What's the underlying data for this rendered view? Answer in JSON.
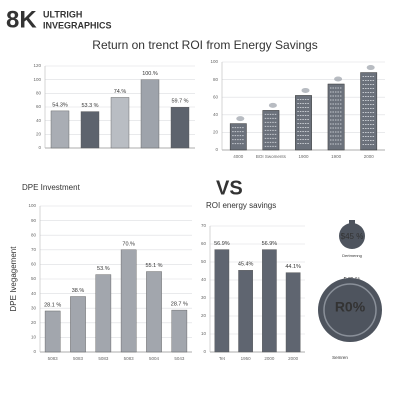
{
  "header": {
    "logo": "8K",
    "brand_line1": "ULTRIGH",
    "brand_line2": "INVEGRAPHICS"
  },
  "title": "Return on trenct ROI from Energy Savings",
  "vs": "VS",
  "chart_data": [
    {
      "type": "bar",
      "categories": [
        null,
        null,
        null,
        null,
        null
      ],
      "values": [
        54.3,
        53.3,
        74,
        100,
        59.7
      ],
      "value_labels": [
        "54.3%",
        "53.3 %",
        "74.%",
        "100.%",
        "59.7 %"
      ],
      "colors": [
        "#a9adb4",
        "#5d636d",
        "#b9bdc3",
        "#9ea3ab",
        "#5d636d"
      ],
      "ylim": [
        0,
        120
      ],
      "yticks": [
        0,
        20,
        40,
        60,
        80,
        100,
        120
      ],
      "grid": true
    },
    {
      "type": "building",
      "categories": [
        "4000",
        "BOI Swoments",
        "1900",
        "1900",
        "2000"
      ],
      "values": [
        30,
        45,
        62,
        75,
        88
      ],
      "color": "#6b717b",
      "ylim": [
        0,
        100
      ],
      "yticks": [
        0,
        20,
        40,
        60,
        80,
        100
      ],
      "grid": true
    },
    {
      "type": "bar",
      "title": "DPE Investment",
      "ylabel": "DPE Ivegagement",
      "categories": [
        "5083",
        "5083",
        "5083",
        "5083",
        "5004",
        "5043"
      ],
      "values": [
        28.1,
        38,
        53,
        70,
        55.1,
        28.7
      ],
      "value_labels": [
        "28.1 %",
        "38.%",
        "53.%",
        "70.%",
        "55.1 %",
        "28.7 %"
      ],
      "color": "#a2a6ad",
      "ylim": [
        0,
        100
      ],
      "yticks": [
        0,
        10,
        20,
        30,
        40,
        50,
        60,
        70,
        80,
        90,
        100
      ],
      "grid": true
    },
    {
      "type": "bar",
      "title": "ROI energy savings",
      "categories": [
        "Tet",
        "1950",
        "2000",
        "2000"
      ],
      "values": [
        56.9,
        45.4,
        56.9,
        44.1
      ],
      "value_labels": [
        "56.9%",
        "45.4%",
        "56.9%",
        "44.1%"
      ],
      "color": "#5f6570",
      "ylim": [
        0,
        70
      ],
      "yticks": [
        0,
        10,
        20,
        30,
        40,
        50,
        60,
        70
      ],
      "grid": true,
      "annotations": [
        "$45 %",
        "Dertmenng",
        "545 %",
        "R0%",
        "Semren"
      ]
    }
  ]
}
